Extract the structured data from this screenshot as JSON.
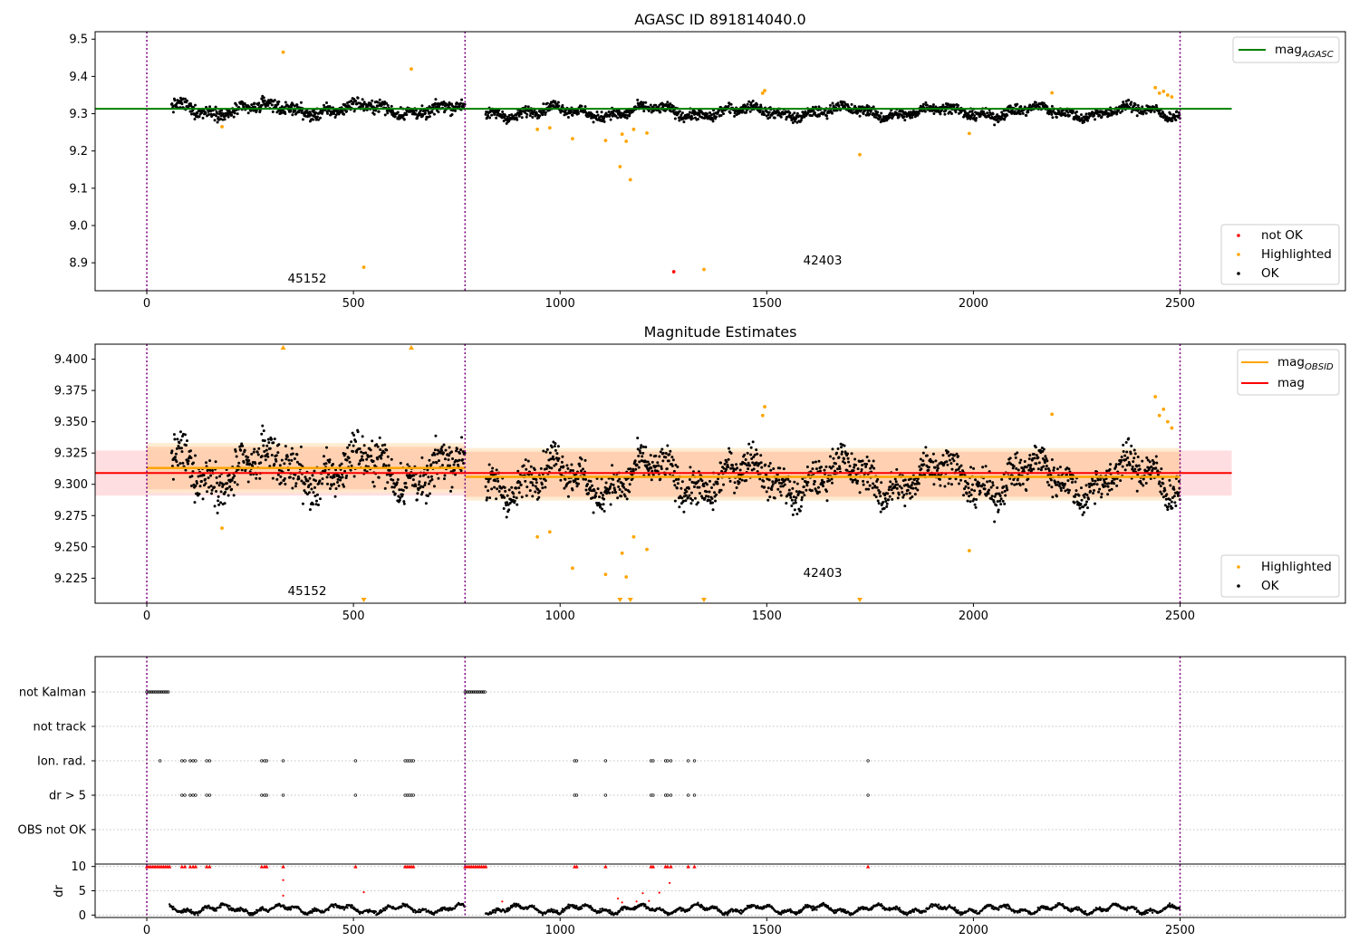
{
  "chart_data": [
    {
      "type": "scatter",
      "title": "AGASC ID 891814040.0",
      "xlim": [
        -125,
        2900
      ],
      "ylim": [
        8.825,
        9.52
      ],
      "x_ticks": [
        0,
        500,
        1000,
        1500,
        2000,
        2500
      ],
      "y_ticks": [
        8.9,
        9.0,
        9.1,
        9.2,
        9.3,
        9.4,
        9.5
      ],
      "y_tick_labels": [
        "8.9",
        "9.0",
        "9.1",
        "9.2",
        "9.3",
        "9.4",
        "9.5"
      ],
      "vlines": [
        0,
        770,
        2500
      ],
      "hline": {
        "y": 9.313,
        "x_range": [
          -125,
          2625
        ],
        "label": "mag_AGASC",
        "color": "#008000"
      },
      "annotations": [
        {
          "text": "45152",
          "x": 385,
          "y": 8.85
        },
        {
          "text": "42403",
          "x": 1635,
          "y": 8.9
        }
      ],
      "legend_top": [
        {
          "label": "mag",
          "sub": "AGASC",
          "color": "#008000",
          "kind": "line"
        }
      ],
      "legend_bottom": [
        {
          "label": "not OK",
          "color": "#ff0000",
          "kind": "dot"
        },
        {
          "label": "Highlighted",
          "color": "#ffa500",
          "kind": "dot"
        },
        {
          "label": "OK",
          "color": "#000000",
          "kind": "dot"
        }
      ],
      "segments": [
        {
          "x0": 60,
          "x1": 770,
          "base": 9.312,
          "amp": 0.02,
          "noise": 0.012
        },
        {
          "x0": 820,
          "x1": 2500,
          "base": 9.305,
          "amp": 0.02,
          "noise": 0.01
        }
      ],
      "highlighted": [
        [
          182,
          9.265
        ],
        [
          330,
          9.465
        ],
        [
          525,
          8.888
        ],
        [
          640,
          9.42
        ],
        [
          945,
          9.258
        ],
        [
          975,
          9.262
        ],
        [
          1030,
          9.233
        ],
        [
          1110,
          9.228
        ],
        [
          1145,
          9.158
        ],
        [
          1150,
          9.245
        ],
        [
          1160,
          9.226
        ],
        [
          1170,
          9.123
        ],
        [
          1178,
          9.258
        ],
        [
          1210,
          9.248
        ],
        [
          1348,
          8.882
        ],
        [
          1490,
          9.355
        ],
        [
          1495,
          9.362
        ],
        [
          1725,
          9.19
        ],
        [
          1990,
          9.247
        ],
        [
          2190,
          9.356
        ],
        [
          2440,
          9.37
        ],
        [
          2450,
          9.355
        ],
        [
          2460,
          9.36
        ],
        [
          2470,
          9.35
        ],
        [
          2480,
          9.345
        ]
      ],
      "not_ok": [
        [
          1275,
          8.876
        ]
      ]
    },
    {
      "type": "scatter",
      "title": "Magnitude Estimates",
      "xlim": [
        -125,
        2900
      ],
      "ylim": [
        9.205,
        9.412
      ],
      "x_ticks": [
        0,
        500,
        1000,
        1500,
        2000,
        2500
      ],
      "y_ticks": [
        9.225,
        9.25,
        9.275,
        9.3,
        9.325,
        9.35,
        9.375,
        9.4
      ],
      "y_tick_labels": [
        "9.225",
        "9.250",
        "9.275",
        "9.300",
        "9.325",
        "9.350",
        "9.375",
        "9.400"
      ],
      "vlines": [
        0,
        770,
        2500
      ],
      "mag_line": {
        "y": 9.309,
        "band": [
          9.291,
          9.327
        ],
        "x_range": [
          -125,
          2625
        ],
        "color": "#ff0000"
      },
      "obsid_mags": [
        {
          "x_range": [
            0,
            770
          ],
          "y": 9.313,
          "band_inner": [
            9.296,
            9.33
          ],
          "band_outer": [
            9.293,
            9.333
          ]
        },
        {
          "x_range": [
            770,
            2500
          ],
          "y": 9.306,
          "band_inner": [
            9.29,
            9.326
          ],
          "band_outer": [
            9.287,
            9.329
          ]
        }
      ],
      "annotations": [
        {
          "text": "45152",
          "x": 385,
          "y": 9.211
        },
        {
          "text": "42403",
          "x": 1635,
          "y": 9.228
        }
      ],
      "legend_top": [
        {
          "label": "mag",
          "sub": "OBSID",
          "color": "#ffa500",
          "kind": "line"
        },
        {
          "label": "mag",
          "sub": "",
          "color": "#ff0000",
          "kind": "line"
        }
      ],
      "legend_bottom": [
        {
          "label": "Highlighted",
          "color": "#ffa500",
          "kind": "dot"
        },
        {
          "label": "OK",
          "color": "#000000",
          "kind": "dot"
        }
      ],
      "off_scale_markers": [
        {
          "x": 330,
          "dir": "up"
        },
        {
          "x": 640,
          "dir": "up"
        },
        {
          "x": 525,
          "dir": "down"
        },
        {
          "x": 1145,
          "dir": "down"
        },
        {
          "x": 1170,
          "dir": "down"
        },
        {
          "x": 1348,
          "dir": "down"
        },
        {
          "x": 1725,
          "dir": "down"
        }
      ]
    },
    {
      "type": "scatter",
      "title": "",
      "xlim": [
        -125,
        2900
      ],
      "x_ticks": [
        0,
        500,
        1000,
        1500,
        2000,
        2500
      ],
      "vlines": [
        0,
        770,
        2500
      ],
      "flag_rows": [
        "not Kalman",
        "not track",
        "Ion. rad.",
        "dr > 5",
        "OBS not OK"
      ],
      "flag_points": {
        "not Kalman": [
          [
            0,
            55
          ],
          [
            770,
            820
          ]
        ],
        "not track": [],
        "Ion. rad.": [
          32,
          85,
          92,
          105,
          112,
          118,
          145,
          152,
          278,
          285,
          290,
          330,
          505,
          625,
          630,
          635,
          640,
          645,
          1035,
          1040,
          1110,
          1220,
          1225,
          1255,
          1260,
          1268,
          1310,
          1325,
          1745
        ],
        "dr > 5": [
          85,
          92,
          105,
          112,
          118,
          145,
          152,
          278,
          285,
          290,
          330,
          505,
          625,
          630,
          635,
          640,
          645,
          1035,
          1040,
          1110,
          1220,
          1225,
          1255,
          1260,
          1268,
          1310,
          1325,
          1745
        ],
        "OBS not OK": []
      },
      "dr_ylabel": "dr",
      "dr_ylim": [
        -0.5,
        10.5
      ],
      "dr_ticks": [
        0,
        5,
        10
      ],
      "dr_tick_labels": [
        "0",
        "5",
        "10"
      ],
      "dr_clipped": [
        0,
        5,
        10,
        15,
        20,
        25,
        30,
        35,
        40,
        45,
        50,
        55,
        85,
        92,
        105,
        112,
        118,
        145,
        152,
        278,
        285,
        290,
        330,
        505,
        625,
        630,
        635,
        640,
        645,
        770,
        775,
        780,
        785,
        790,
        795,
        800,
        805,
        810,
        815,
        820,
        1035,
        1040,
        1110,
        1220,
        1225,
        1255,
        1260,
        1268,
        1310,
        1325,
        1745
      ],
      "dr_outliers": [
        [
          330,
          7.2
        ],
        [
          330,
          4.0
        ],
        [
          525,
          4.7
        ],
        [
          860,
          2.8
        ],
        [
          1140,
          3.4
        ],
        [
          1150,
          2.6
        ],
        [
          1185,
          2.8
        ],
        [
          1200,
          4.5
        ],
        [
          1215,
          2.9
        ],
        [
          1240,
          4.6
        ],
        [
          1265,
          6.6
        ]
      ],
      "dr_segments": [
        [
          55,
          770
        ],
        [
          820,
          2500
        ]
      ]
    }
  ]
}
